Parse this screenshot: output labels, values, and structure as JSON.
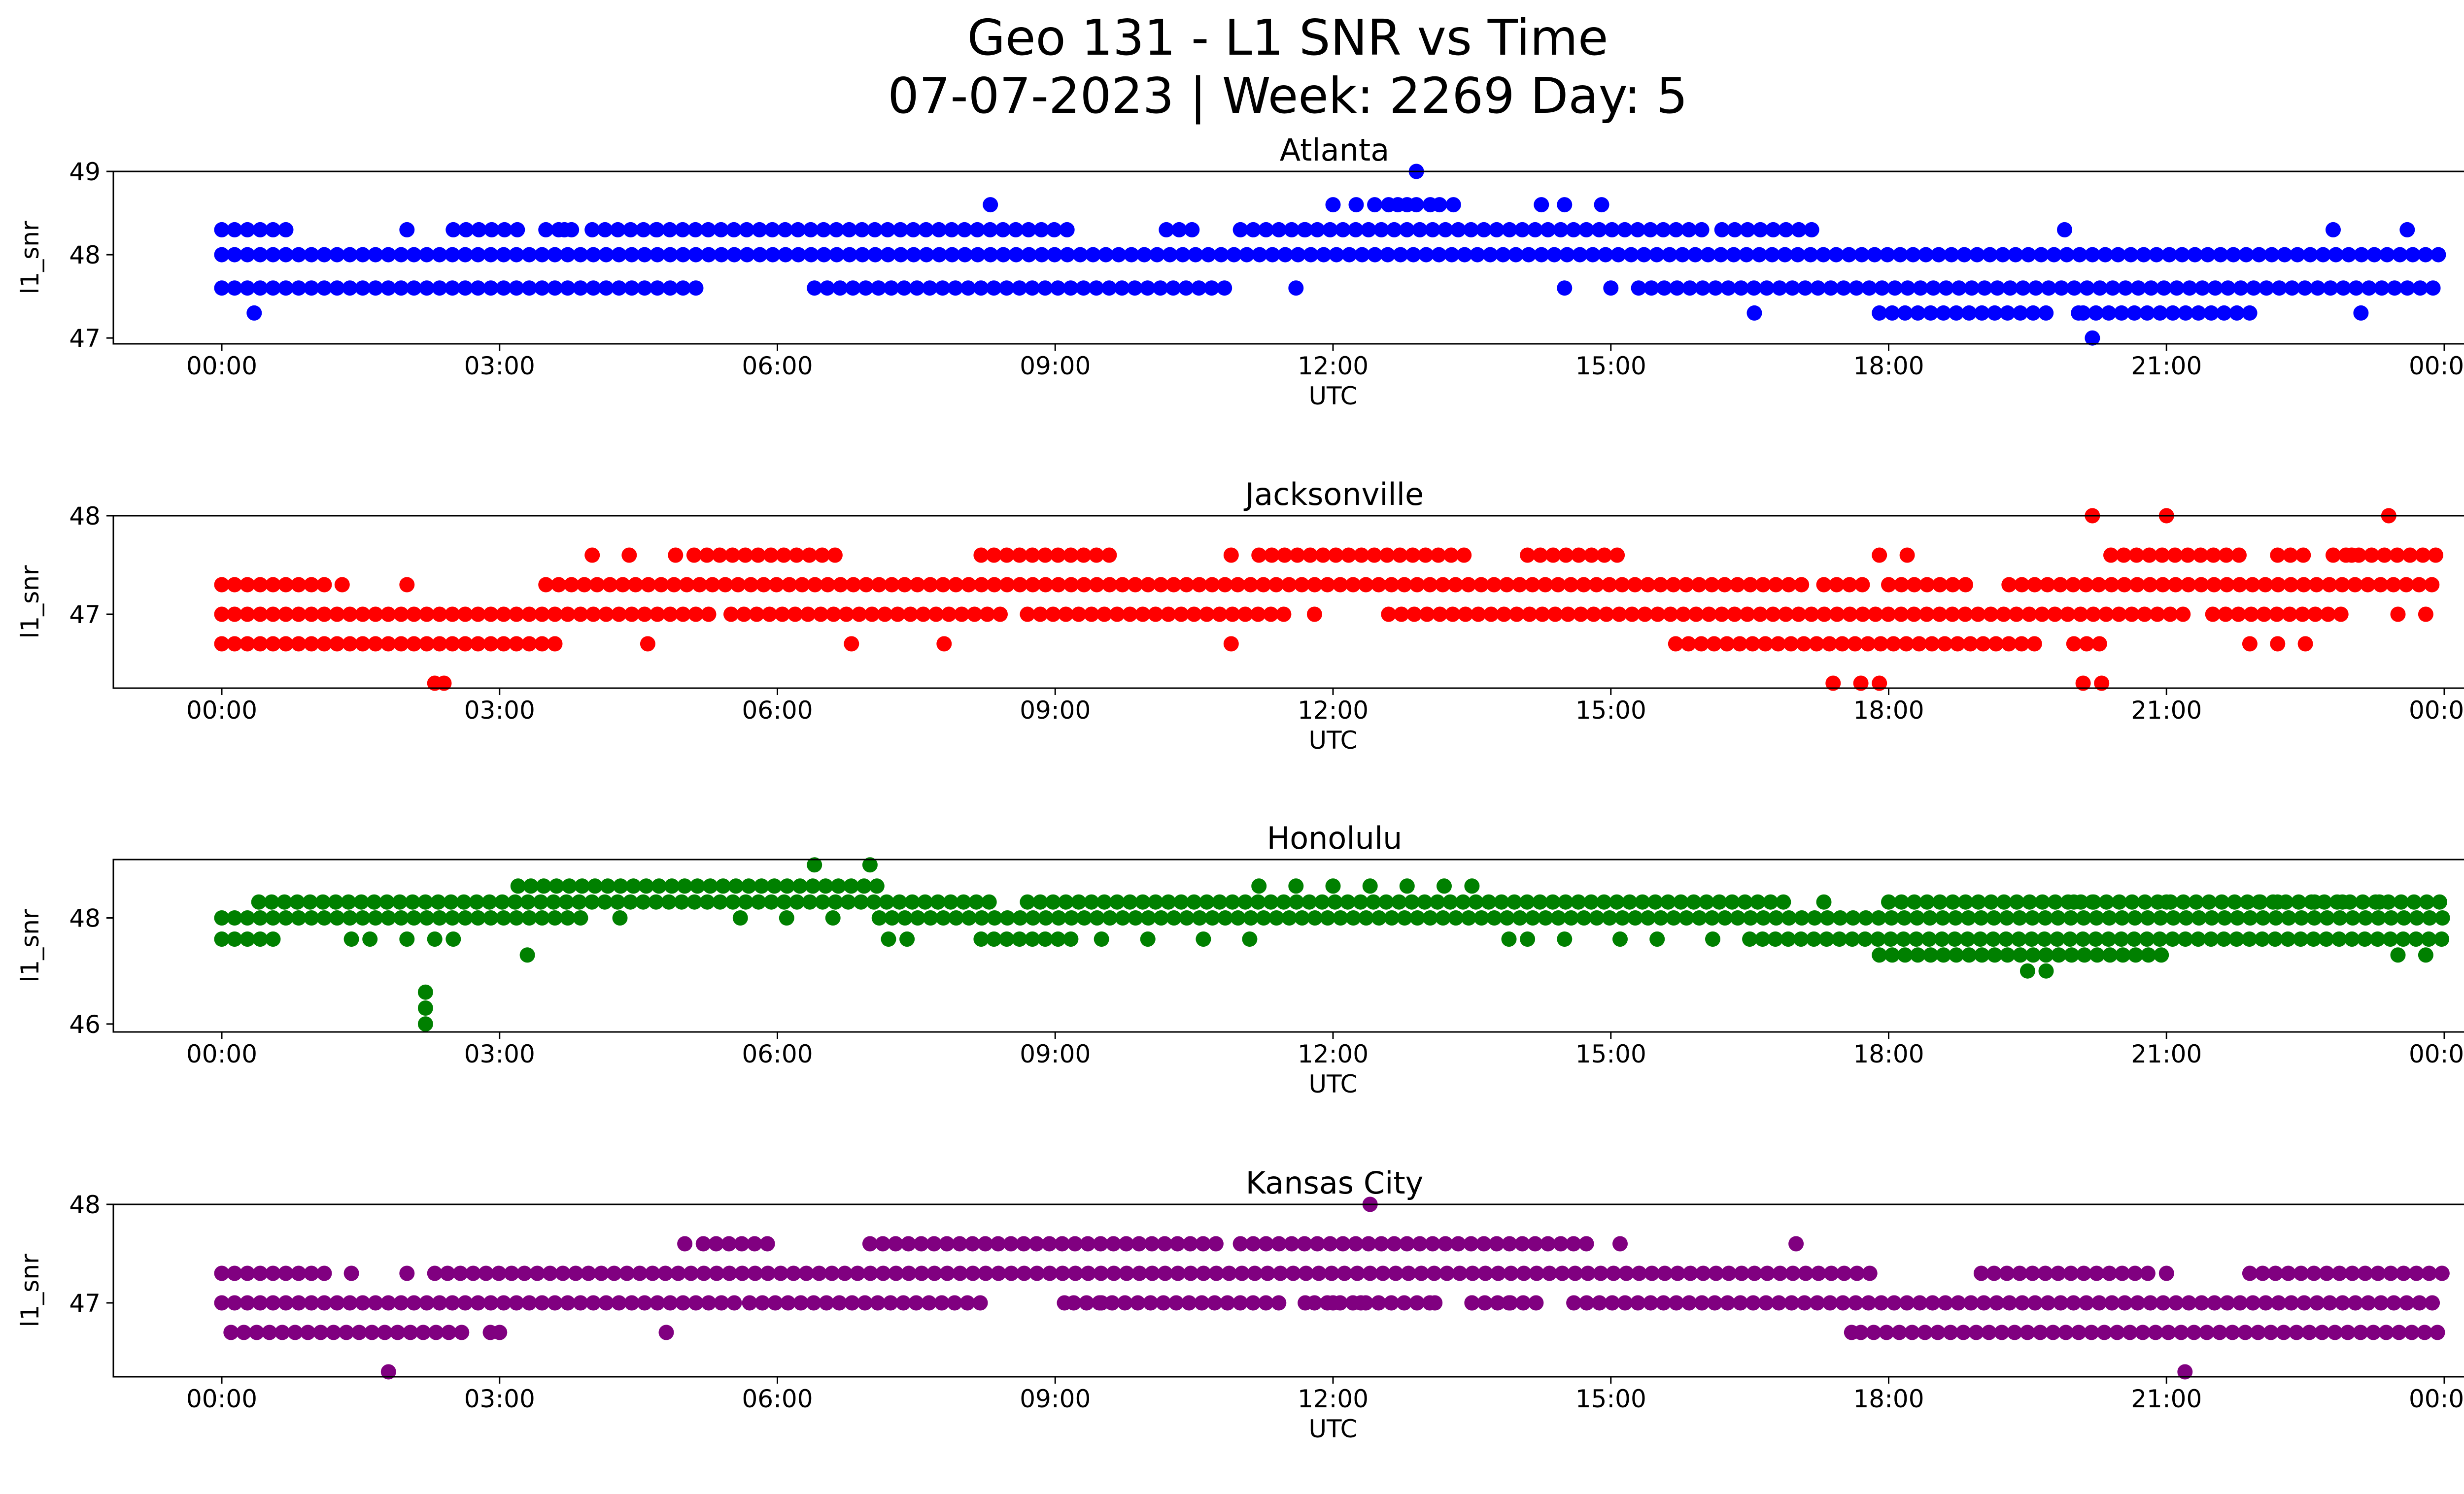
{
  "figure": {
    "title_line1": "Geo 131 - L1 SNR vs Time",
    "title_line2": "07-07-2023 | Week: 2269 Day: 5"
  },
  "chart_data": [
    {
      "type": "scatter",
      "title": "Atlanta",
      "xlabel": "UTC",
      "ylabel": "l1_snr",
      "color": "#0000ff",
      "xlim": [
        0,
        24
      ],
      "ylim": [
        46.93,
        49.0
      ],
      "x_ticks": [
        "00:00",
        "03:00",
        "06:00",
        "09:00",
        "12:00",
        "15:00",
        "18:00",
        "21:00",
        "00:00"
      ],
      "y_ticks": [
        47,
        48,
        49
      ],
      "bands": [
        {
          "y": 48.0,
          "segments": [
            [
              0.0,
              24.0
            ]
          ]
        },
        {
          "y": 48.3,
          "segments": [
            [
              0.0,
              0.7
            ],
            [
              2.5,
              3.3
            ],
            [
              3.5,
              3.9
            ],
            [
              4.0,
              4.7
            ],
            [
              4.7,
              9.2
            ],
            [
              10.2,
              10.5
            ],
            [
              11.0,
              16.0
            ],
            [
              16.2,
              17.2
            ]
          ]
        },
        {
          "y": 47.6,
          "segments": [
            [
              0.0,
              5.2
            ],
            [
              6.4,
              10.9
            ],
            [
              15.3,
              24.0
            ]
          ]
        },
        {
          "y": 47.3,
          "segments": [
            [
              17.9,
              19.8
            ],
            [
              20.1,
              21.9
            ]
          ]
        }
      ],
      "points": [
        [
          0.35,
          47.3
        ],
        [
          2.0,
          48.3
        ],
        [
          3.7,
          48.3
        ],
        [
          8.3,
          48.6
        ],
        [
          11.7,
          48.3
        ],
        [
          12.0,
          48.6
        ],
        [
          12.25,
          48.6
        ],
        [
          12.45,
          48.6
        ],
        [
          12.6,
          48.6
        ],
        [
          12.7,
          48.6
        ],
        [
          12.8,
          48.6
        ],
        [
          12.9,
          48.6
        ],
        [
          13.05,
          48.6
        ],
        [
          13.15,
          48.6
        ],
        [
          13.3,
          48.6
        ],
        [
          12.9,
          49.0
        ],
        [
          14.25,
          48.6
        ],
        [
          14.5,
          48.6
        ],
        [
          14.9,
          48.6
        ],
        [
          14.5,
          47.6
        ],
        [
          15.0,
          47.6
        ],
        [
          11.6,
          47.6
        ],
        [
          16.55,
          47.3
        ],
        [
          19.9,
          48.3
        ],
        [
          20.05,
          47.3
        ],
        [
          20.2,
          47.0
        ],
        [
          22.8,
          48.3
        ],
        [
          23.6,
          48.3
        ],
        [
          23.1,
          47.3
        ]
      ]
    },
    {
      "type": "scatter",
      "title": "Jacksonville",
      "xlabel": "UTC",
      "ylabel": "l1_snr",
      "color": "#ff0000",
      "xlim": [
        0,
        24
      ],
      "ylim": [
        46.25,
        48.0
      ],
      "x_ticks": [
        "00:00",
        "03:00",
        "06:00",
        "09:00",
        "12:00",
        "15:00",
        "18:00",
        "21:00",
        "00:00"
      ],
      "y_ticks": [
        47,
        48
      ],
      "bands": [
        {
          "y": 47.0,
          "segments": [
            [
              0.0,
              5.3
            ],
            [
              5.5,
              8.5
            ],
            [
              8.7,
              11.5
            ],
            [
              12.6,
              21.3
            ],
            [
              21.5,
              23.0
            ]
          ]
        },
        {
          "y": 47.3,
          "segments": [
            [
              0.0,
              1.2
            ],
            [
              3.5,
              17.1
            ],
            [
              17.3,
              17.8
            ],
            [
              18.0,
              18.9
            ],
            [
              19.3,
              24.0
            ]
          ]
        },
        {
          "y": 46.7,
          "segments": [
            [
              0.0,
              3.6
            ],
            [
              15.7,
              19.6
            ],
            [
              20.0,
              20.4
            ]
          ]
        },
        {
          "y": 47.6,
          "segments": [
            [
              5.1,
              6.7
            ],
            [
              8.2,
              9.6
            ],
            [
              11.2,
              13.5
            ],
            [
              14.1,
              15.2
            ],
            [
              20.4,
              21.8
            ],
            [
              22.2,
              22.6
            ],
            [
              22.8,
              24.0
            ]
          ]
        }
      ],
      "points": [
        [
          1.3,
          47.3
        ],
        [
          2.0,
          47.3
        ],
        [
          2.3,
          46.3
        ],
        [
          2.4,
          46.3
        ],
        [
          4.0,
          47.6
        ],
        [
          4.4,
          47.6
        ],
        [
          4.9,
          47.6
        ],
        [
          4.6,
          46.7
        ],
        [
          6.8,
          46.7
        ],
        [
          7.8,
          46.7
        ],
        [
          10.9,
          46.7
        ],
        [
          10.9,
          47.6
        ],
        [
          11.8,
          47.0
        ],
        [
          17.4,
          46.3
        ],
        [
          17.7,
          46.3
        ],
        [
          17.9,
          46.3
        ],
        [
          17.9,
          47.6
        ],
        [
          18.2,
          47.6
        ],
        [
          20.1,
          46.3
        ],
        [
          20.3,
          46.3
        ],
        [
          20.2,
          48.0
        ],
        [
          21.0,
          48.0
        ],
        [
          23.4,
          48.0
        ],
        [
          21.9,
          46.7
        ],
        [
          22.2,
          46.7
        ],
        [
          22.5,
          46.7
        ],
        [
          23.0,
          47.6
        ],
        [
          23.5,
          47.0
        ],
        [
          23.8,
          47.0
        ]
      ]
    },
    {
      "type": "scatter",
      "title": "Honolulu",
      "xlabel": "UTC",
      "ylabel": "l1_snr",
      "color": "#008000",
      "xlim": [
        0,
        24
      ],
      "ylim": [
        45.85,
        49.1
      ],
      "x_ticks": [
        "00:00",
        "03:00",
        "06:00",
        "09:00",
        "12:00",
        "15:00",
        "18:00",
        "21:00",
        "00:00"
      ],
      "y_ticks": [
        46,
        48
      ],
      "bands": [
        {
          "y": 48.0,
          "segments": [
            [
              0.0,
              3.9
            ],
            [
              7.1,
              24.0
            ]
          ]
        },
        {
          "y": 48.3,
          "segments": [
            [
              0.4,
              8.3
            ],
            [
              8.7,
              17.0
            ],
            [
              18.0,
              24.0
            ]
          ]
        },
        {
          "y": 47.6,
          "segments": [
            [
              0.0,
              0.6
            ],
            [
              8.2,
              9.2
            ],
            [
              16.5,
              24.0
            ]
          ]
        },
        {
          "y": 48.6,
          "segments": [
            [
              3.2,
              7.2
            ]
          ]
        },
        {
          "y": 47.3,
          "segments": [
            [
              17.9,
              21.0
            ]
          ]
        }
      ],
      "points": [
        [
          1.4,
          47.6
        ],
        [
          1.6,
          47.6
        ],
        [
          2.0,
          47.6
        ],
        [
          2.3,
          47.6
        ],
        [
          2.5,
          47.6
        ],
        [
          2.2,
          46.6
        ],
        [
          2.2,
          46.3
        ],
        [
          2.2,
          46.0
        ],
        [
          3.3,
          47.3
        ],
        [
          4.3,
          48.0
        ],
        [
          5.6,
          48.0
        ],
        [
          6.1,
          48.0
        ],
        [
          6.6,
          48.0
        ],
        [
          6.4,
          49.0
        ],
        [
          7.0,
          49.0
        ],
        [
          7.2,
          47.6
        ],
        [
          7.4,
          47.6
        ],
        [
          9.5,
          47.6
        ],
        [
          10.0,
          47.6
        ],
        [
          10.6,
          47.6
        ],
        [
          11.1,
          47.6
        ],
        [
          11.2,
          48.6
        ],
        [
          11.6,
          48.6
        ],
        [
          12.0,
          48.6
        ],
        [
          12.4,
          48.6
        ],
        [
          12.8,
          48.6
        ],
        [
          13.2,
          48.6
        ],
        [
          13.5,
          48.6
        ],
        [
          13.9,
          47.6
        ],
        [
          14.1,
          47.6
        ],
        [
          14.5,
          47.6
        ],
        [
          15.1,
          47.6
        ],
        [
          15.5,
          47.6
        ],
        [
          16.1,
          47.6
        ],
        [
          17.3,
          48.3
        ],
        [
          19.5,
          47.0
        ],
        [
          19.7,
          47.0
        ],
        [
          20.0,
          48.3
        ],
        [
          20.2,
          48.3
        ],
        [
          21.0,
          48.3
        ],
        [
          22.0,
          48.3
        ],
        [
          22.2,
          48.3
        ],
        [
          22.6,
          48.3
        ],
        [
          22.9,
          48.3
        ],
        [
          23.3,
          48.3
        ],
        [
          23.5,
          47.3
        ],
        [
          23.8,
          47.3
        ]
      ]
    },
    {
      "type": "scatter",
      "title": "Kansas City",
      "xlabel": "UTC",
      "ylabel": "l1_snr",
      "color": "#800080",
      "xlim": [
        0,
        24
      ],
      "ylim": [
        46.25,
        48.0
      ],
      "x_ticks": [
        "00:00",
        "03:00",
        "06:00",
        "09:00",
        "12:00",
        "15:00",
        "18:00",
        "21:00",
        "00:00"
      ],
      "y_ticks": [
        47,
        48
      ],
      "bands": [
        {
          "y": 47.0,
          "segments": [
            [
              0.0,
              5.6
            ],
            [
              5.7,
              8.2
            ],
            [
              9.2,
              11.5
            ],
            [
              11.8,
              13.1
            ],
            [
              13.5,
              14.2
            ],
            [
              14.6,
              24.0
            ]
          ]
        },
        {
          "y": 47.3,
          "segments": [
            [
              0.0,
              1.2
            ],
            [
              2.3,
              17.9
            ],
            [
              19.0,
              20.9
            ],
            [
              21.9,
              24.0
            ]
          ]
        },
        {
          "y": 46.7,
          "segments": [
            [
              0.1,
              2.7
            ],
            [
              17.7,
              24.0
            ]
          ]
        },
        {
          "y": 47.6,
          "segments": [
            [
              5.2,
              5.9
            ],
            [
              7.0,
              10.8
            ],
            [
              11.0,
              14.8
            ]
          ]
        }
      ],
      "points": [
        [
          1.4,
          47.3
        ],
        [
          2.0,
          47.3
        ],
        [
          1.8,
          46.3
        ],
        [
          2.9,
          46.7
        ],
        [
          3.0,
          46.7
        ],
        [
          4.8,
          46.7
        ],
        [
          5.0,
          47.6
        ],
        [
          9.1,
          47.0
        ],
        [
          9.5,
          47.0
        ],
        [
          11.7,
          47.0
        ],
        [
          12.0,
          47.0
        ],
        [
          12.3,
          47.0
        ],
        [
          12.4,
          48.0
        ],
        [
          13.1,
          47.0
        ],
        [
          13.5,
          47.0
        ],
        [
          13.9,
          47.0
        ],
        [
          15.1,
          47.6
        ],
        [
          17.0,
          47.6
        ],
        [
          17.6,
          46.7
        ],
        [
          21.0,
          47.3
        ],
        [
          21.2,
          46.3
        ]
      ]
    }
  ]
}
